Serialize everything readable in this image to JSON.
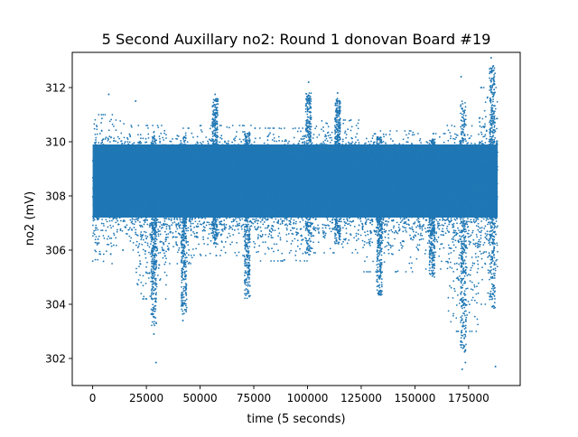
{
  "chart_data": {
    "type": "scatter",
    "title": "5 Second Auxillary no2: Round 1 donovan Board #19",
    "xlabel": "time (5 seconds)",
    "ylabel": "no2 (mV)",
    "xlim": [
      -9500,
      199000
    ],
    "ylim": [
      301.0,
      313.3
    ],
    "x_ticks": [
      0,
      25000,
      50000,
      75000,
      100000,
      125000,
      150000,
      175000
    ],
    "y_ticks": [
      302,
      304,
      306,
      308,
      310,
      312
    ],
    "grid": false,
    "legend": "none",
    "marker_color": "#1f77b4",
    "x_range": [
      0,
      188500
    ],
    "baseline_mean": 308.5,
    "baseline_band": [
      307.2,
      309.9
    ],
    "noise_segments": [
      {
        "x": [
          0,
          10000
        ],
        "upper": 311.0,
        "lower": 305.5
      },
      {
        "x": [
          10000,
          20000
        ],
        "upper": 310.8,
        "lower": 306.0
      },
      {
        "x": [
          20000,
          35000
        ],
        "upper": 310.6,
        "lower": 304.2
      },
      {
        "x": [
          35000,
          50000
        ],
        "upper": 310.5,
        "lower": 305.5
      },
      {
        "x": [
          50000,
          75000
        ],
        "upper": 310.6,
        "lower": 305.8
      },
      {
        "x": [
          75000,
          100000
        ],
        "upper": 310.5,
        "lower": 305.6
      },
      {
        "x": [
          100000,
          125000
        ],
        "upper": 310.8,
        "lower": 305.9
      },
      {
        "x": [
          125000,
          150000
        ],
        "upper": 310.4,
        "lower": 305.2
      },
      {
        "x": [
          150000,
          165000
        ],
        "upper": 310.3,
        "lower": 305.3
      },
      {
        "x": [
          165000,
          180000
        ],
        "upper": 310.6,
        "lower": 303.0
      },
      {
        "x": [
          180000,
          188500
        ],
        "upper": 312.0,
        "lower": 304.0
      }
    ],
    "outliers": [
      {
        "x": 28500,
        "y": 302.9
      },
      {
        "x": 29500,
        "y": 301.85
      },
      {
        "x": 42000,
        "y": 303.4
      },
      {
        "x": 7500,
        "y": 311.75
      },
      {
        "x": 20000,
        "y": 311.5
      },
      {
        "x": 57000,
        "y": 311.75
      },
      {
        "x": 100500,
        "y": 312.2
      },
      {
        "x": 114000,
        "y": 311.8
      },
      {
        "x": 171500,
        "y": 312.4
      },
      {
        "x": 172000,
        "y": 301.6
      },
      {
        "x": 173500,
        "y": 301.85
      },
      {
        "x": 185500,
        "y": 313.1
      },
      {
        "x": 186500,
        "y": 312.8
      },
      {
        "x": 187500,
        "y": 301.7
      }
    ],
    "spikes": [
      {
        "x": 28500,
        "y_min": 303.2,
        "y_max": 310.2
      },
      {
        "x": 42500,
        "y_min": 303.6,
        "y_max": 310.2
      },
      {
        "x": 57000,
        "y_min": 306.2,
        "y_max": 311.6
      },
      {
        "x": 72000,
        "y_min": 304.2,
        "y_max": 310.3
      },
      {
        "x": 100500,
        "y_min": 305.8,
        "y_max": 311.8
      },
      {
        "x": 114000,
        "y_min": 306.2,
        "y_max": 311.6
      },
      {
        "x": 133500,
        "y_min": 304.3,
        "y_max": 310.2
      },
      {
        "x": 158000,
        "y_min": 305.0,
        "y_max": 310.1
      },
      {
        "x": 172500,
        "y_min": 302.2,
        "y_max": 311.5
      },
      {
        "x": 186000,
        "y_min": 303.8,
        "y_max": 312.8
      }
    ]
  }
}
